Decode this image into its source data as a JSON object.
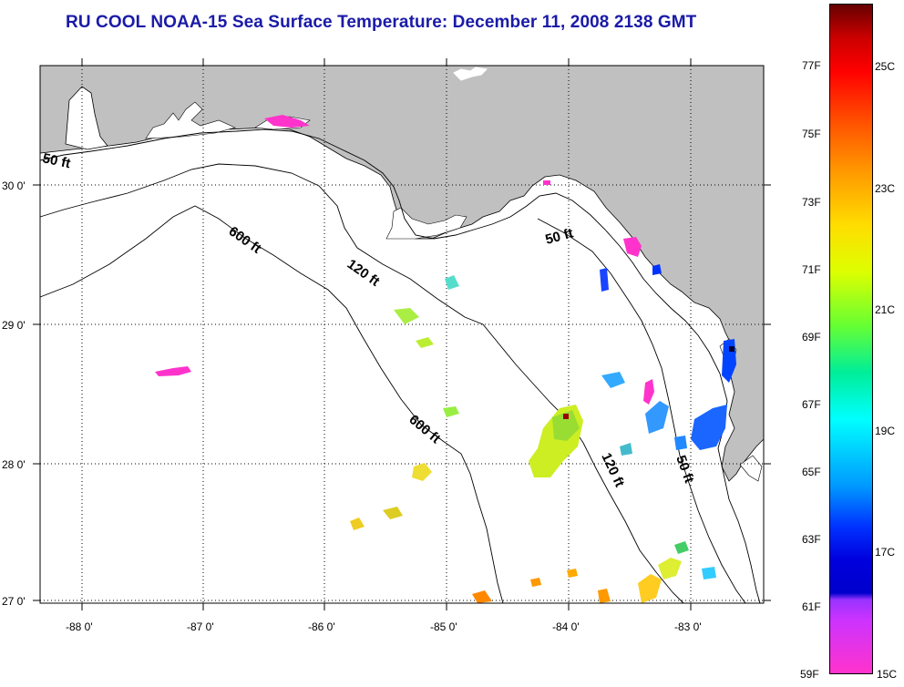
{
  "title": "RU COOL  NOAA-15  Sea Surface Temperature:  December 11, 2008 2138 GMT",
  "colors": {
    "land": "#c0c0c0",
    "sea": "#ffffff",
    "title": "#1a1aa8",
    "contour": "#000000",
    "grid": "#000000"
  },
  "map": {
    "lon_labels": [
      "-88 0'",
      "-87 0'",
      "-86 0'",
      "-85 0'",
      "-84 0'",
      "-83 0'"
    ],
    "lat_labels": [
      "30 0'",
      "29 0'",
      "28 0'",
      "27 0'"
    ],
    "contour_labels": [
      "50 ft",
      "600 ft",
      "120 ft",
      "50 ft",
      "600 ft",
      "120 ft",
      "50 ft"
    ]
  },
  "colorbar": {
    "fahrenheit": [
      "77F",
      "75F",
      "73F",
      "71F",
      "69F",
      "67F",
      "65F",
      "63F",
      "61F",
      "59F"
    ],
    "celsius": [
      "25C",
      "23C",
      "21C",
      "19C",
      "17C",
      "15C"
    ]
  }
}
